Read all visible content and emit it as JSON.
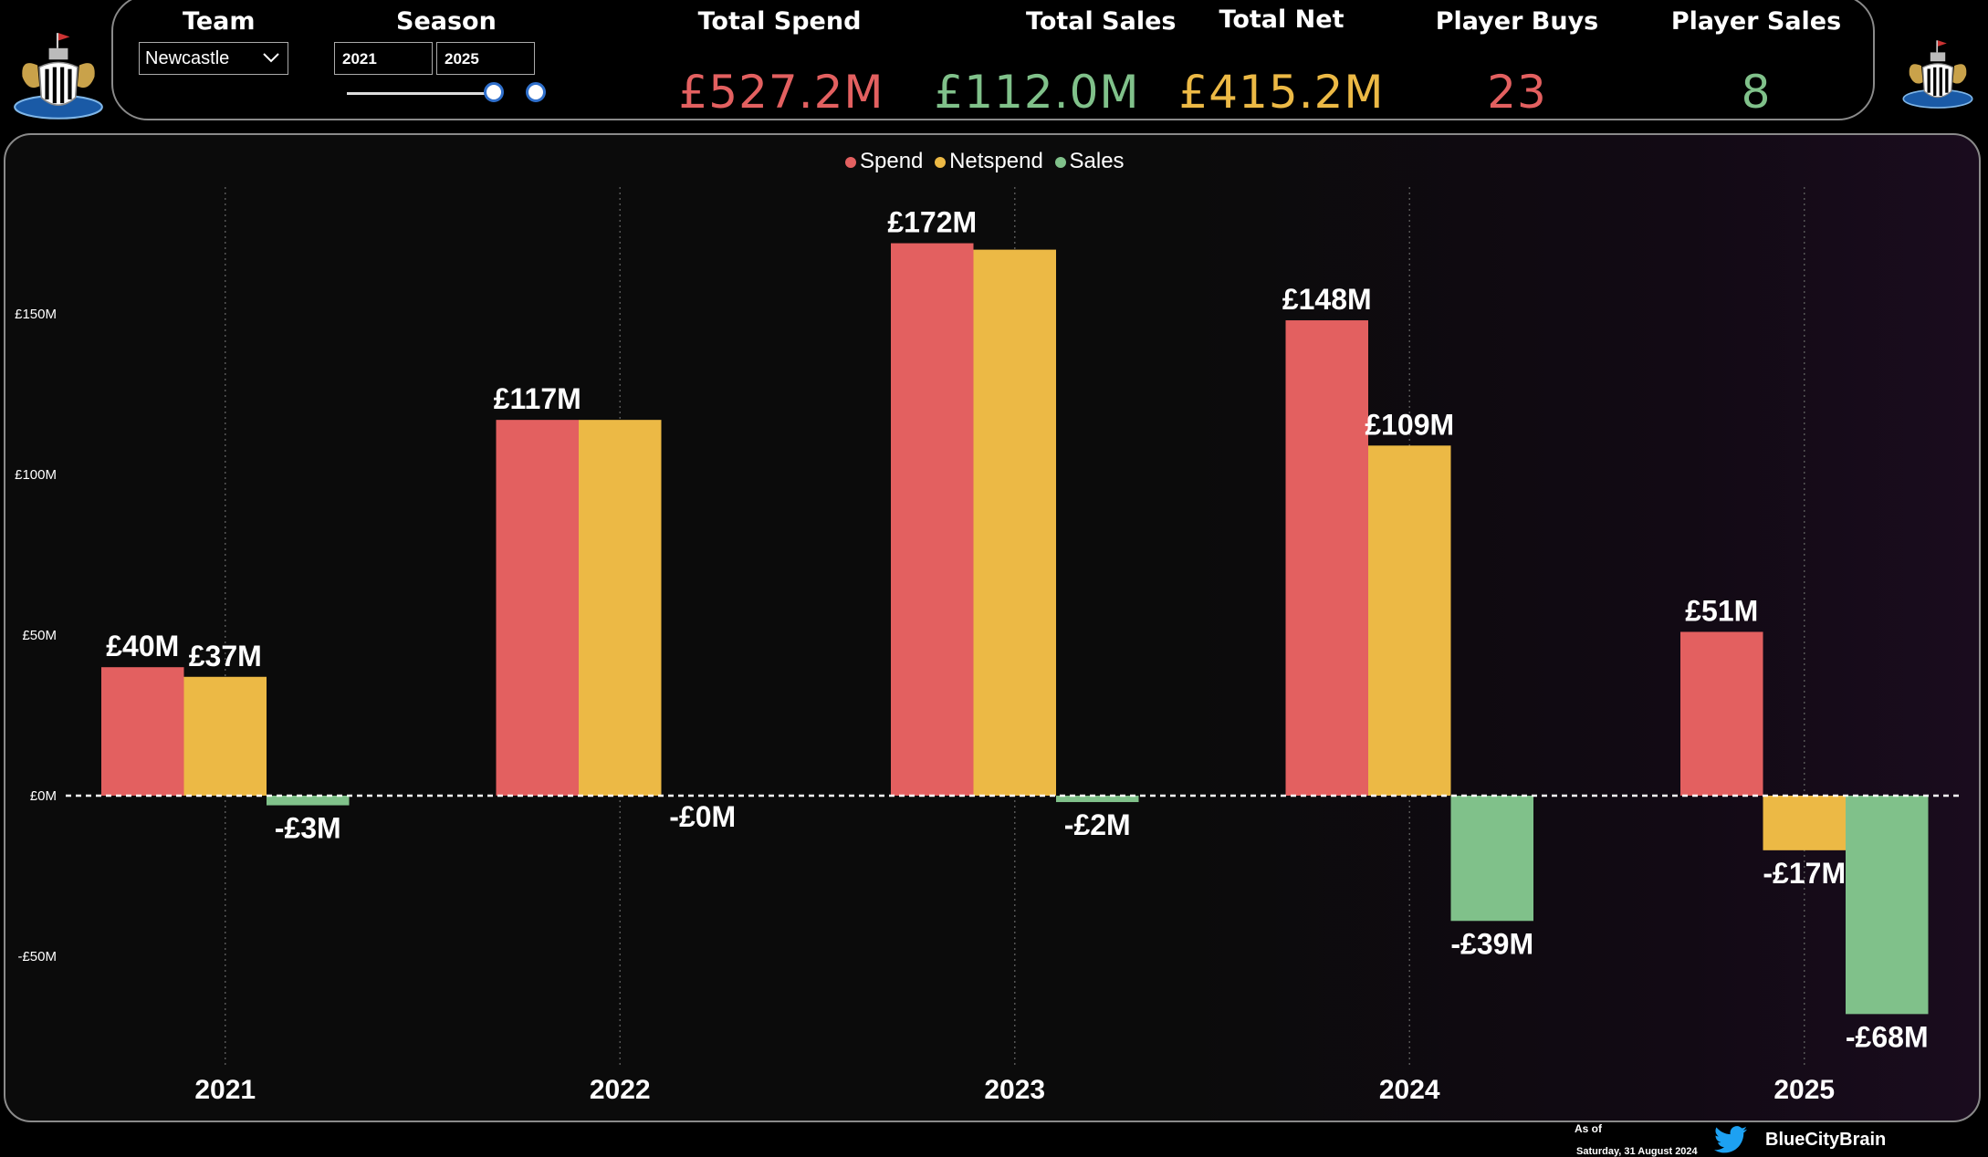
{
  "header": {
    "team_label": "Team",
    "season_label": "Season",
    "team_value": "Newcastle",
    "season_from": "2021",
    "season_to": "2025",
    "kpis": [
      {
        "label": "Total Spend",
        "value": "£527.2M",
        "color": "#e36060"
      },
      {
        "label": "Total Sales",
        "value": "£112.0M",
        "color": "#80c18a"
      },
      {
        "label": "Total Net",
        "value": "£415.2M",
        "color": "#ecb945"
      },
      {
        "label": "Player Buys",
        "value": "23",
        "color": "#e36060"
      },
      {
        "label": "Player Sales",
        "value": "8",
        "color": "#80c18a"
      }
    ]
  },
  "colors": {
    "spend": "#e36060",
    "netspend": "#ecb945",
    "sales": "#80c18a",
    "accent_knob": "#2f6fcb",
    "twitter": "#1da1f2"
  },
  "icons": {
    "team_logo": "newcastle-crest",
    "dropdown": "chevron-down-icon",
    "social": "twitter-bird-icon"
  },
  "chart_data": {
    "type": "bar",
    "categories": [
      "2021",
      "2022",
      "2023",
      "2024",
      "2025"
    ],
    "series": [
      {
        "name": "Spend",
        "values": [
          40,
          117,
          172,
          148,
          51
        ],
        "labels": [
          "£40M",
          "£117M",
          "£172M",
          "£148M",
          "£51M"
        ]
      },
      {
        "name": "Netspend",
        "values": [
          37,
          117,
          170,
          109,
          -17
        ],
        "labels": [
          "£37M",
          "",
          "",
          "£109M",
          "-£17M"
        ]
      },
      {
        "name": "Sales",
        "values": [
          -3,
          -0.2,
          -2,
          -39,
          -68
        ],
        "labels": [
          "-£3M",
          "-£0M",
          "-£2M",
          "-£39M",
          "-£68M"
        ]
      }
    ],
    "ylim": [
      -80,
      190
    ],
    "yticks": [
      -50,
      0,
      50,
      100,
      150
    ],
    "ytick_labels": [
      "-£50M",
      "£0M",
      "£50M",
      "£100M",
      "£150M"
    ],
    "legend_position": "top-center",
    "grid": "vertical dotted per category"
  },
  "footer": {
    "as_of_label": "As of",
    "as_of_date": "Saturday, 31 August 2024",
    "handle": "BlueCityBrain"
  }
}
